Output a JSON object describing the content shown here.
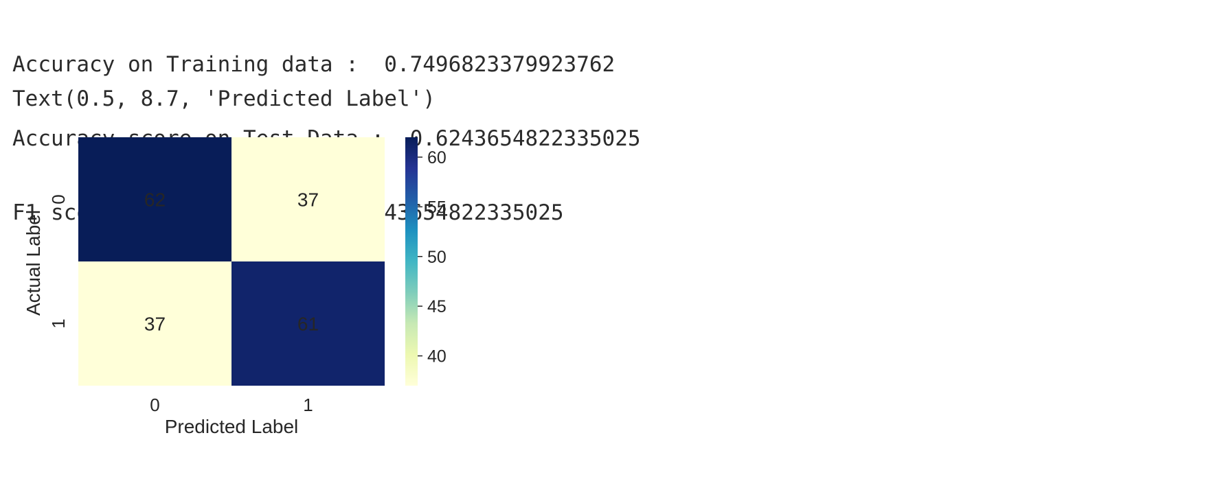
{
  "output": {
    "lines": [
      {
        "label": "Accuracy on Training data :  ",
        "value": "0.7496823379923762"
      },
      {
        "label": "Accuracy score on Test Data :  ",
        "value": "0.6243654822335025"
      },
      {
        "label": "F1 score on Test Data :  ",
        "value": "0.6243654822335025"
      }
    ],
    "repr": "Text(0.5, 8.7, 'Predicted Label')"
  },
  "chart_data": {
    "type": "heatmap",
    "title": "",
    "xlabel": "Predicted Label",
    "ylabel": "Actual Label",
    "x_categories": [
      "0",
      "1"
    ],
    "y_categories": [
      "0",
      "1"
    ],
    "values": [
      [
        62,
        37
      ],
      [
        37,
        61
      ]
    ],
    "annotations": true,
    "colormap": "YlGnBu",
    "colorbar": {
      "min": 37,
      "max": 62,
      "ticks": [
        40,
        45,
        50,
        55,
        60
      ]
    }
  }
}
